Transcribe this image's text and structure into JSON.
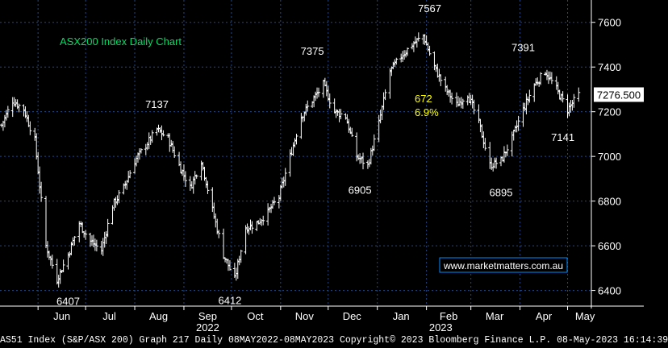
{
  "chart_data": {
    "type": "ohlc",
    "title": "ASX200 Index Daily Chart",
    "x_labels": [
      "Jun",
      "Jul",
      "Aug",
      "Sep",
      "Oct",
      "Nov",
      "Dec",
      "Jan",
      "Feb",
      "Mar",
      "Apr",
      "May"
    ],
    "year_labels": [
      "2022",
      "2023"
    ],
    "ylim": [
      6330,
      7700
    ],
    "yticks": [
      6400,
      6600,
      6800,
      7000,
      7200,
      7400,
      7600
    ],
    "last_price": "7276.500",
    "grid": true,
    "series": [
      {
        "x": [
          "2022-05-09",
          "2022-05-16",
          "2022-05-23",
          "2022-05-30",
          "2022-06-06",
          "2022-06-13",
          "2022-06-20",
          "2022-06-27",
          "2022-07-04",
          "2022-07-11",
          "2022-07-18",
          "2022-07-25",
          "2022-08-01",
          "2022-08-08",
          "2022-08-15",
          "2022-08-22",
          "2022-08-29",
          "2022-09-05",
          "2022-09-12",
          "2022-09-19",
          "2022-09-26",
          "2022-10-03",
          "2022-10-10",
          "2022-10-17",
          "2022-10-24",
          "2022-10-31",
          "2022-11-07",
          "2022-11-14",
          "2022-11-21",
          "2022-11-28",
          "2022-12-05",
          "2022-12-12",
          "2022-12-19",
          "2022-12-26",
          "2023-01-02",
          "2023-01-09",
          "2023-01-16",
          "2023-01-23",
          "2023-01-30",
          "2023-02-06",
          "2023-02-13",
          "2023-02-20",
          "2023-02-27",
          "2023-03-06",
          "2023-03-13",
          "2023-03-20",
          "2023-03-27",
          "2023-04-03",
          "2023-04-10",
          "2023-04-17",
          "2023-04-24",
          "2023-05-01",
          "2023-05-08"
        ],
        "y": [
          7140,
          7250,
          7210,
          7070,
          6600,
          6450,
          6560,
          6700,
          6620,
          6580,
          6780,
          6860,
          6980,
          7050,
          7120,
          7080,
          6960,
          6860,
          6980,
          6760,
          6560,
          6450,
          6680,
          6700,
          6750,
          6820,
          7000,
          7180,
          7250,
          7320,
          7200,
          7180,
          7000,
          6960,
          7150,
          7380,
          7450,
          7500,
          7540,
          7400,
          7300,
          7230,
          7280,
          7150,
          6960,
          6980,
          7080,
          7210,
          7320,
          7380,
          7300,
          7210,
          7276
        ]
      }
    ],
    "annotations": [
      {
        "label": "6407",
        "x": "2022-06-20",
        "y": 6407
      },
      {
        "label": "7137",
        "x": "2022-08-15",
        "y": 7137
      },
      {
        "label": "6412",
        "x": "2022-09-30",
        "y": 6412
      },
      {
        "label": "7375",
        "x": "2022-11-21",
        "y": 7375
      },
      {
        "label": "6905",
        "x": "2022-12-21",
        "y": 6905
      },
      {
        "label": "7567",
        "x": "2023-02-03",
        "y": 7567
      },
      {
        "label": "6895",
        "x": "2023-03-20",
        "y": 6895
      },
      {
        "label": "7391",
        "x": "2023-04-03",
        "y": 7391
      },
      {
        "label": "7141",
        "x": "2023-04-28",
        "y": 7141
      }
    ],
    "move_label": "672",
    "move_pct": "6.9%",
    "watermark_url": "www.marketmatters.com.au"
  },
  "footer": "AS51 Index (S&P/ASX 200) Graph 217  Daily 08MAY2022-08MAY2023 Copyright© 2023 Bloomberg Finance L.P. 08-May-2023 16:14:39",
  "colors": {
    "background": "#000000",
    "grid": "#1e4a8c",
    "price": "#ffffff",
    "title": "#00dd66",
    "move": "#ffff00",
    "url_border": "#0088ff"
  }
}
